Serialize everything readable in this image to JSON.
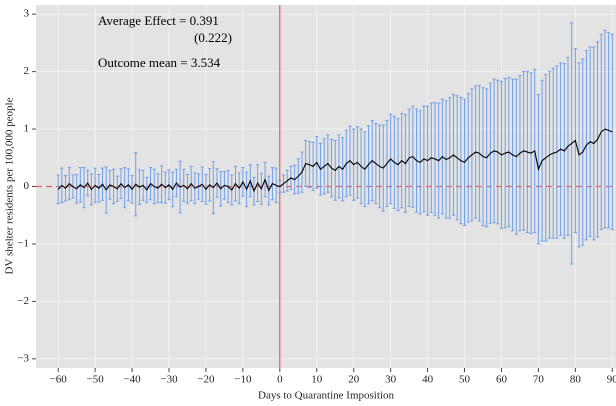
{
  "chart_data": {
    "type": "errorbar-line",
    "xlabel": "Days to Quarantine Imposition",
    "ylabel": "DV shelter residents per 100,000 people",
    "annotations": [
      "Average Effect = 0.391",
      "(0.222)",
      "Outcome mean = 3.534"
    ],
    "color": "#000000",
    "error_color": "#6f9fe8",
    "xlim": [
      -66,
      91
    ],
    "ylim": [
      -3.16,
      3.16
    ],
    "xticks": [
      {
        "value": -60,
        "label": "−60"
      },
      {
        "value": -50,
        "label": "−50"
      },
      {
        "value": -40,
        "label": "−40"
      },
      {
        "value": -30,
        "label": "−30"
      },
      {
        "value": -20,
        "label": "−20"
      },
      {
        "value": -10,
        "label": "−10"
      },
      0,
      10,
      20,
      30,
      40,
      50,
      60,
      70,
      80,
      90
    ],
    "yticks": [
      {
        "value": -3,
        "label": "−3"
      },
      {
        "value": -2,
        "label": "−2"
      },
      {
        "value": -1,
        "label": "−1"
      },
      0,
      1,
      2,
      3
    ],
    "grid": true,
    "x": [
      -60,
      -59,
      -58,
      -57,
      -56,
      -55,
      -54,
      -53,
      -52,
      -51,
      -50,
      -49,
      -48,
      -47,
      -46,
      -45,
      -44,
      -43,
      -42,
      -41,
      -40,
      -39,
      -38,
      -37,
      -36,
      -35,
      -34,
      -33,
      -32,
      -31,
      -30,
      -29,
      -28,
      -27,
      -26,
      -25,
      -24,
      -23,
      -22,
      -21,
      -20,
      -19,
      -18,
      -17,
      -16,
      -15,
      -14,
      -13,
      -12,
      -11,
      -10,
      -9,
      -8,
      -7,
      -6,
      -5,
      -4,
      -3,
      -2,
      -1,
      0,
      1,
      2,
      3,
      4,
      5,
      6,
      7,
      8,
      9,
      10,
      11,
      12,
      13,
      14,
      15,
      16,
      17,
      18,
      19,
      20,
      21,
      22,
      23,
      24,
      25,
      26,
      27,
      28,
      29,
      30,
      31,
      32,
      33,
      34,
      35,
      36,
      37,
      38,
      39,
      40,
      41,
      42,
      43,
      44,
      45,
      46,
      47,
      48,
      49,
      50,
      51,
      52,
      53,
      54,
      55,
      56,
      57,
      58,
      59,
      60,
      61,
      62,
      63,
      64,
      65,
      66,
      67,
      68,
      69,
      70,
      71,
      72,
      73,
      74,
      75,
      76,
      77,
      78,
      79,
      80,
      81,
      82,
      83,
      84,
      85,
      86,
      87,
      88,
      89,
      90
    ],
    "values": [
      -0.05,
      0.02,
      -0.03,
      0.05,
      0.0,
      -0.04,
      0.03,
      -0.02,
      0.06,
      -0.05,
      0.02,
      -0.03,
      0.04,
      -0.06,
      0.03,
      0.0,
      -0.04,
      0.05,
      -0.02,
      0.03,
      -0.05,
      0.04,
      -0.01,
      0.02,
      -0.06,
      0.05,
      0.0,
      -0.03,
      0.04,
      -0.02,
      0.03,
      -0.05,
      0.06,
      -0.01,
      0.02,
      -0.04,
      0.05,
      -0.03,
      0.0,
      0.04,
      -0.05,
      0.03,
      -0.02,
      0.06,
      -0.04,
      0.02,
      0.0,
      -0.06,
      0.05,
      -0.03,
      0.08,
      -0.05,
      0.1,
      -0.08,
      0.06,
      -0.04,
      0.12,
      -0.07,
      0.05,
      0.02,
      0.0,
      0.05,
      0.1,
      0.15,
      0.12,
      0.18,
      0.25,
      0.4,
      0.38,
      0.35,
      0.42,
      0.3,
      0.35,
      0.4,
      0.32,
      0.28,
      0.35,
      0.3,
      0.4,
      0.45,
      0.38,
      0.42,
      0.35,
      0.3,
      0.38,
      0.45,
      0.4,
      0.35,
      0.32,
      0.4,
      0.48,
      0.42,
      0.38,
      0.45,
      0.4,
      0.5,
      0.52,
      0.45,
      0.42,
      0.48,
      0.45,
      0.5,
      0.48,
      0.45,
      0.52,
      0.47,
      0.5,
      0.55,
      0.5,
      0.45,
      0.42,
      0.5,
      0.55,
      0.6,
      0.58,
      0.52,
      0.5,
      0.58,
      0.62,
      0.6,
      0.55,
      0.58,
      0.6,
      0.55,
      0.52,
      0.58,
      0.62,
      0.6,
      0.58,
      0.62,
      0.3,
      0.45,
      0.5,
      0.55,
      0.58,
      0.6,
      0.65,
      0.62,
      0.7,
      0.75,
      0.8,
      0.55,
      0.6,
      0.72,
      0.78,
      0.75,
      0.82,
      0.95,
      1.0,
      0.98,
      0.95
    ],
    "errors": [
      0.25,
      0.3,
      0.22,
      0.28,
      0.2,
      0.25,
      0.3,
      0.35,
      0.22,
      0.27,
      0.3,
      0.24,
      0.28,
      0.4,
      0.25,
      0.3,
      0.22,
      0.26,
      0.35,
      0.28,
      0.24,
      0.55,
      0.3,
      0.26,
      0.22,
      0.28,
      0.3,
      0.25,
      0.32,
      0.27,
      0.26,
      0.3,
      0.24,
      0.45,
      0.28,
      0.25,
      0.3,
      0.27,
      0.22,
      0.3,
      0.26,
      0.28,
      0.45,
      0.25,
      0.3,
      0.24,
      0.28,
      0.26,
      0.3,
      0.27,
      0.25,
      0.3,
      0.28,
      0.24,
      0.32,
      0.27,
      0.3,
      0.25,
      0.28,
      0.3,
      0.1,
      0.15,
      0.18,
      0.2,
      0.25,
      0.3,
      0.35,
      0.4,
      0.4,
      0.42,
      0.45,
      0.45,
      0.48,
      0.5,
      0.5,
      0.52,
      0.55,
      0.55,
      0.58,
      0.6,
      0.62,
      0.62,
      0.65,
      0.65,
      0.68,
      0.7,
      0.7,
      0.72,
      0.75,
      0.75,
      0.78,
      0.8,
      0.8,
      0.82,
      0.85,
      0.85,
      0.88,
      0.9,
      0.9,
      0.92,
      0.95,
      0.95,
      0.98,
      1.0,
      1.0,
      1.02,
      1.05,
      1.05,
      1.08,
      1.1,
      1.1,
      1.12,
      1.15,
      1.15,
      1.18,
      1.2,
      1.2,
      1.22,
      1.25,
      1.25,
      1.28,
      1.3,
      1.3,
      1.32,
      1.35,
      1.35,
      1.38,
      1.4,
      1.4,
      1.42,
      1.3,
      1.4,
      1.45,
      1.45,
      1.48,
      1.5,
      1.5,
      1.52,
      1.55,
      2.1,
      1.6,
      1.6,
      1.62,
      1.65,
      1.65,
      1.68,
      1.7,
      1.7,
      1.72,
      1.7,
      1.7
    ]
  }
}
